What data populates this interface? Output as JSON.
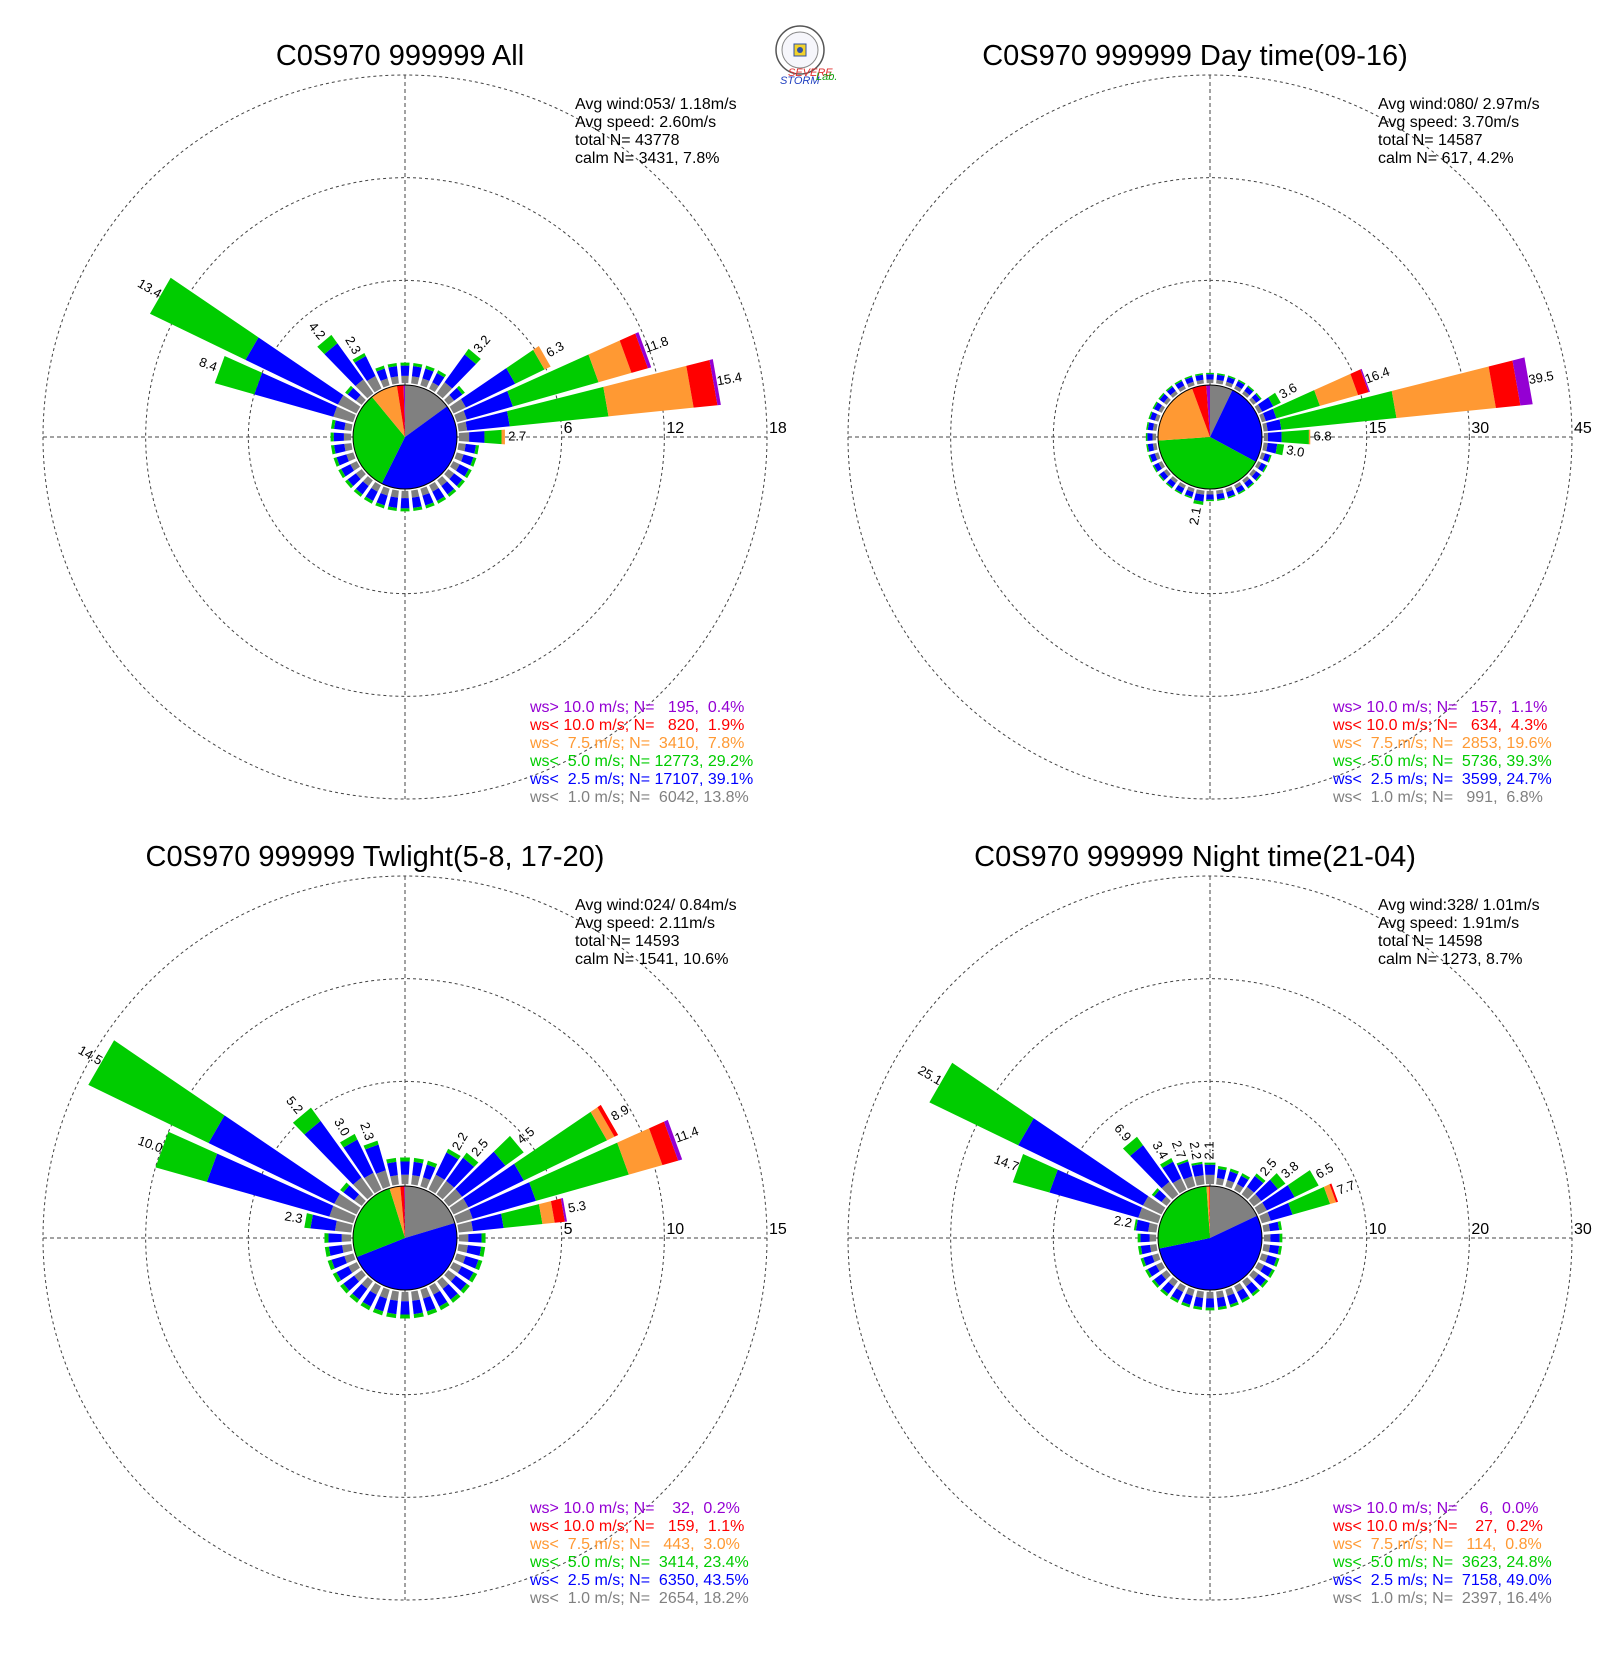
{
  "logo": {
    "text_severe": "SEVERE",
    "text_storm": "STORM",
    "text_lab": "Lab.",
    "icon": "severe-storm-lab-seal"
  },
  "colors": {
    "purple": "#9400d3",
    "red": "#ff0000",
    "orange": "#ff9933",
    "green": "#00cc00",
    "blue": "#0000ff",
    "gray": "#808080",
    "axis": "#444444"
  },
  "chart_data": [
    {
      "type": "wind-rose",
      "title": "C0S970 999999 All",
      "stats": [
        "Avg wind:053/ 1.18m/s",
        "Avg speed: 2.60m/s",
        "total N=       43778",
        "calm N=   3431,   7.8%"
      ],
      "rings": [
        6,
        12,
        18
      ],
      "max": 18,
      "legend": [
        {
          "color": "purple",
          "text": "ws> 10.0 m/s; N=   195,  0.4%"
        },
        {
          "color": "red",
          "text": "ws< 10.0 m/s; N=   820,  1.9%"
        },
        {
          "color": "orange",
          "text": "ws<  7.5 m/s; N=  3410,  7.8%"
        },
        {
          "color": "green",
          "text": "ws<  5.0 m/s; N= 12773, 29.2%"
        },
        {
          "color": "blue",
          "text": "ws<  2.5 m/s; N= 17107, 39.1%"
        },
        {
          "color": "gray",
          "text": "ws<  1.0 m/s; N=  6042, 13.8%"
        }
      ],
      "pie": [
        13.8,
        39.1,
        29.2,
        7.8,
        1.9,
        0.4
      ],
      "labeled_bars": [
        {
          "dir": 300,
          "total": 13.4,
          "label": "13.4",
          "parts": [
            1.2,
            6.0,
            6.2,
            0,
            0,
            0
          ]
        },
        {
          "dir": 290,
          "total": 8.4,
          "label": "8.4",
          "parts": [
            1.2,
            4.8,
            2.4,
            0,
            0,
            0
          ]
        },
        {
          "dir": 320,
          "total": 4.2,
          "label": "4.2",
          "parts": [
            1.0,
            2.6,
            0.6,
            0,
            0,
            0
          ]
        },
        {
          "dir": 330,
          "total": 2.3,
          "label": "2.3",
          "parts": [
            0.8,
            1.3,
            0.2,
            0,
            0,
            0
          ]
        },
        {
          "dir": 40,
          "total": 3.2,
          "label": "3.2",
          "parts": [
            0.8,
            2.0,
            0.4,
            0,
            0,
            0
          ]
        },
        {
          "dir": 60,
          "total": 6.3,
          "label": "6.3",
          "parts": [
            0.8,
            3.2,
            1.9,
            0.4,
            0,
            0
          ]
        },
        {
          "dir": 70,
          "total": 11.8,
          "label": "11.8",
          "parts": [
            0.6,
            2.8,
            5.2,
            2.0,
            1.0,
            0.2
          ]
        },
        {
          "dir": 80,
          "total": 15.4,
          "label": "15.4",
          "parts": [
            0.5,
            2.5,
            5.8,
            5.0,
            1.4,
            0.2
          ]
        },
        {
          "dir": 90,
          "total": 2.7,
          "label": "2.7",
          "parts": [
            0.6,
            0.9,
            1.0,
            0.2,
            0,
            0
          ]
        }
      ],
      "base_bar": 1.2
    },
    {
      "type": "wind-rose",
      "title": "C0S970 999999 Day time(09-16)",
      "stats": [
        "Avg wind:080/ 2.97m/s",
        "Avg speed: 3.70m/s",
        "total N=       14587",
        "calm N=    617,   4.2%"
      ],
      "rings": [
        15,
        30,
        45
      ],
      "max": 45,
      "legend": [
        {
          "color": "purple",
          "text": "ws> 10.0 m/s; N=   157,  1.1%"
        },
        {
          "color": "red",
          "text": "ws< 10.0 m/s; N=   634,  4.3%"
        },
        {
          "color": "orange",
          "text": "ws<  7.5 m/s; N=  2853, 19.6%"
        },
        {
          "color": "green",
          "text": "ws<  5.0 m/s; N=  5736, 39.3%"
        },
        {
          "color": "blue",
          "text": "ws<  2.5 m/s; N=  3599, 24.7%"
        },
        {
          "color": "gray",
          "text": "ws<  1.0 m/s; N=   991,  6.8%"
        }
      ],
      "pie": [
        6.8,
        24.7,
        39.3,
        19.6,
        4.3,
        1.1
      ],
      "labeled_bars": [
        {
          "dir": 60,
          "total": 3.6,
          "label": "3.6",
          "parts": [
            0.6,
            1.8,
            1.2,
            0,
            0,
            0
          ]
        },
        {
          "dir": 70,
          "total": 16.4,
          "label": "16.4",
          "parts": [
            0.6,
            1.6,
            6.6,
            5.8,
            1.6,
            0.2
          ]
        },
        {
          "dir": 80,
          "total": 39.5,
          "label": "39.5",
          "parts": [
            0.6,
            2.0,
            16.9,
            14.6,
            3.6,
            1.8
          ]
        },
        {
          "dir": 90,
          "total": 6.8,
          "label": "6.8",
          "parts": [
            0.6,
            2.0,
            4.0,
            0.2,
            0,
            0
          ]
        },
        {
          "dir": 100,
          "total": 3.0,
          "label": "3.0",
          "parts": [
            0.6,
            1.4,
            1.0,
            0,
            0,
            0
          ]
        },
        {
          "dir": 190,
          "total": 2.1,
          "label": "2.1",
          "parts": [
            0.6,
            1.0,
            0.5,
            0,
            0,
            0
          ]
        }
      ],
      "base_bar": 1.5
    },
    {
      "type": "wind-rose",
      "title": "C0S970 999999 Twlight(5-8, 17-20)",
      "stats": [
        "Avg wind:024/ 0.84m/s",
        "Avg speed: 2.11m/s",
        "total N=       14593",
        "calm N=   1541,  10.6%"
      ],
      "rings": [
        5,
        10,
        15
      ],
      "max": 15,
      "legend": [
        {
          "color": "purple",
          "text": "ws> 10.0 m/s; N=    32,  0.2%"
        },
        {
          "color": "red",
          "text": "ws< 10.0 m/s; N=   159,  1.1%"
        },
        {
          "color": "orange",
          "text": "ws<  7.5 m/s; N=   443,  3.0%"
        },
        {
          "color": "green",
          "text": "ws<  5.0 m/s; N=  3414, 23.4%"
        },
        {
          "color": "blue",
          "text": "ws<  2.5 m/s; N=  6350, 43.5%"
        },
        {
          "color": "gray",
          "text": "ws<  1.0 m/s; N=  2654, 18.2%"
        }
      ],
      "pie": [
        18.2,
        43.5,
        23.4,
        3.0,
        1.1,
        0.2
      ],
      "labeled_bars": [
        {
          "dir": 300,
          "total": 14.5,
          "label": "14.5",
          "parts": [
            1.2,
            6.8,
            6.5,
            0,
            0,
            0
          ]
        },
        {
          "dir": 290,
          "total": 10.0,
          "label": "10.0",
          "parts": [
            1.2,
            6.2,
            2.6,
            0,
            0,
            0
          ]
        },
        {
          "dir": 280,
          "total": 2.3,
          "label": "2.3",
          "parts": [
            0.8,
            1.2,
            0.3,
            0,
            0,
            0
          ]
        },
        {
          "dir": 320,
          "total": 5.2,
          "label": "5.2",
          "parts": [
            1.0,
            3.4,
            0.8,
            0,
            0,
            0
          ]
        },
        {
          "dir": 330,
          "total": 3.0,
          "label": "3.0",
          "parts": [
            0.9,
            1.8,
            0.3,
            0,
            0,
            0
          ]
        },
        {
          "dir": 340,
          "total": 2.3,
          "label": "2.3",
          "parts": [
            0.8,
            1.3,
            0.2,
            0,
            0,
            0
          ]
        },
        {
          "dir": 30,
          "total": 2.2,
          "label": "2.2",
          "parts": [
            0.8,
            1.2,
            0.2,
            0,
            0,
            0
          ]
        },
        {
          "dir": 40,
          "total": 2.5,
          "label": "2.5",
          "parts": [
            0.8,
            1.4,
            0.3,
            0,
            0,
            0
          ]
        },
        {
          "dir": 50,
          "total": 4.5,
          "label": "4.5",
          "parts": [
            0.8,
            2.6,
            1.1,
            0,
            0,
            0
          ]
        },
        {
          "dir": 60,
          "total": 8.9,
          "label": "8.9",
          "parts": [
            0.8,
            3.0,
            4.5,
            0.4,
            0.2,
            0
          ]
        },
        {
          "dir": 70,
          "total": 11.4,
          "label": "11.4",
          "parts": [
            0.8,
            3.2,
            4.7,
            1.7,
            0.8,
            0.2
          ]
        },
        {
          "dir": 80,
          "total": 5.3,
          "label": "5.3",
          "parts": [
            0.7,
            1.5,
            1.9,
            0.6,
            0.5,
            0.1
          ]
        }
      ],
      "base_bar": 1.3
    },
    {
      "type": "wind-rose",
      "title": "C0S970 999999 Night time(21-04)",
      "stats": [
        "Avg wind:328/ 1.01m/s",
        "Avg speed: 1.91m/s",
        "total N=       14598",
        "calm N=   1273,   8.7%"
      ],
      "rings": [
        10,
        20,
        30
      ],
      "max": 30,
      "legend": [
        {
          "color": "purple",
          "text": "ws> 10.0 m/s; N=     6,  0.0%"
        },
        {
          "color": "red",
          "text": "ws< 10.0 m/s; N=    27,  0.2%"
        },
        {
          "color": "orange",
          "text": "ws<  7.5 m/s; N=   114,  0.8%"
        },
        {
          "color": "green",
          "text": "ws<  5.0 m/s; N=  3623, 24.8%"
        },
        {
          "color": "blue",
          "text": "ws<  2.5 m/s; N=  7158, 49.0%"
        },
        {
          "color": "gray",
          "text": "ws<  1.0 m/s; N=  2397, 16.4%"
        }
      ],
      "pie": [
        16.4,
        49.0,
        24.8,
        0.8,
        0.2,
        0.0
      ],
      "labeled_bars": [
        {
          "dir": 300,
          "total": 25.1,
          "label": "25.1",
          "parts": [
            2.0,
            13.5,
            9.6,
            0,
            0,
            0
          ]
        },
        {
          "dir": 290,
          "total": 14.7,
          "label": "14.7",
          "parts": [
            2.0,
            9.0,
            3.7,
            0,
            0,
            0
          ]
        },
        {
          "dir": 280,
          "total": 2.2,
          "label": "2.2",
          "parts": [
            0.8,
            1.2,
            0.2,
            0,
            0,
            0
          ]
        },
        {
          "dir": 320,
          "total": 6.9,
          "label": "6.9",
          "parts": [
            1.5,
            4.4,
            1.0,
            0,
            0,
            0
          ]
        },
        {
          "dir": 330,
          "total": 3.4,
          "label": "3.4",
          "parts": [
            1.2,
            1.8,
            0.4,
            0,
            0,
            0
          ]
        },
        {
          "dir": 340,
          "total": 2.7,
          "label": "2.7",
          "parts": [
            1.0,
            1.5,
            0.2,
            0,
            0,
            0
          ]
        },
        {
          "dir": 350,
          "total": 2.2,
          "label": "2.2",
          "parts": [
            0.9,
            1.1,
            0.2,
            0,
            0,
            0
          ]
        },
        {
          "dir": 0,
          "total": 2.1,
          "label": "2.1",
          "parts": [
            0.9,
            1.0,
            0.2,
            0,
            0,
            0
          ]
        },
        {
          "dir": 40,
          "total": 2.5,
          "label": "2.5",
          "parts": [
            0.9,
            1.3,
            0.3,
            0,
            0,
            0
          ]
        },
        {
          "dir": 50,
          "total": 3.8,
          "label": "3.8",
          "parts": [
            0.9,
            2.0,
            0.9,
            0,
            0,
            0
          ]
        },
        {
          "dir": 60,
          "total": 6.5,
          "label": "6.5",
          "parts": [
            0.9,
            3.0,
            2.6,
            0,
            0,
            0
          ]
        },
        {
          "dir": 70,
          "total": 7.7,
          "label": "7.7",
          "parts": [
            0.9,
            2.2,
            3.8,
            0.6,
            0.2,
            0
          ]
        }
      ],
      "base_bar": 1.8
    }
  ]
}
